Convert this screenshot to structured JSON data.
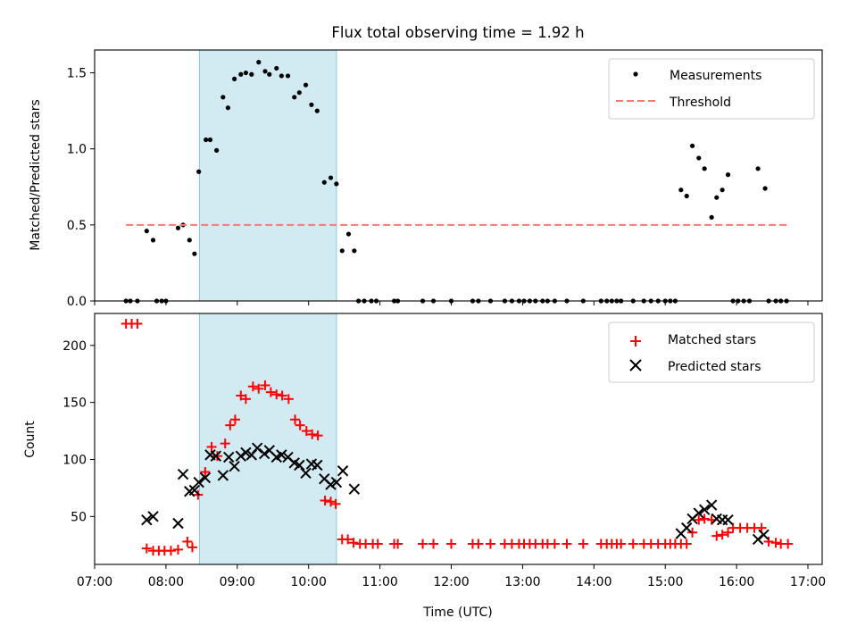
{
  "title": "Flux total observing time = 1.92 h",
  "chart_data": [
    {
      "type": "scatter",
      "panel": "top",
      "ylabel": "Matched/Predicted stars",
      "xlim": [
        7.0,
        17.2
      ],
      "ylim": [
        0.0,
        1.65
      ],
      "yticks": [
        0.0,
        0.5,
        1.0,
        1.5
      ],
      "ytick_labels": [
        "0.0",
        "0.5",
        "1.0",
        "1.5"
      ],
      "highlight": {
        "x_start": 8.47,
        "x_end": 10.39,
        "color": "#add8e6"
      },
      "legend": {
        "position": "top-right",
        "entries": [
          "Measurements",
          "Threshold"
        ]
      },
      "series": [
        {
          "name": "Measurements",
          "color": "#000000",
          "marker": "dot",
          "x": [
            7.44,
            7.5,
            7.6,
            7.73,
            7.82,
            7.87,
            7.94,
            8.0,
            8.17,
            8.24,
            8.33,
            8.4,
            8.46,
            8.56,
            8.62,
            8.71,
            8.8,
            8.87,
            8.96,
            9.05,
            9.12,
            9.2,
            9.3,
            9.39,
            9.45,
            9.55,
            9.62,
            9.71,
            9.8,
            9.87,
            9.96,
            10.04,
            10.12,
            10.22,
            10.31,
            10.39,
            10.47,
            10.56,
            10.64,
            10.7,
            10.78,
            10.88,
            10.95,
            11.2,
            11.25,
            11.6,
            11.75,
            12.0,
            12.3,
            12.38,
            12.55,
            12.75,
            12.85,
            12.95,
            13.02,
            13.1,
            13.18,
            13.28,
            13.35,
            13.45,
            13.62,
            13.85,
            14.1,
            14.18,
            14.25,
            14.32,
            14.38,
            14.55,
            14.7,
            14.8,
            14.9,
            15.0,
            15.07,
            15.14,
            15.22,
            15.3,
            15.38,
            15.47,
            15.55,
            15.65,
            15.72,
            15.8,
            15.88,
            15.95,
            16.02,
            16.1,
            16.18,
            16.3,
            16.4,
            16.45,
            16.55,
            16.62,
            16.7
          ],
          "y": [
            0,
            0,
            0,
            0.46,
            0.4,
            0,
            0,
            0,
            0.48,
            0.5,
            0.4,
            0.31,
            0.85,
            1.06,
            1.06,
            0.99,
            1.34,
            1.27,
            1.46,
            1.49,
            1.5,
            1.49,
            1.57,
            1.51,
            1.49,
            1.53,
            1.48,
            1.48,
            1.34,
            1.37,
            1.42,
            1.29,
            1.25,
            0.78,
            0.81,
            0.77,
            0.33,
            0.44,
            0.33,
            0,
            0,
            0,
            0,
            0,
            0,
            0,
            0,
            0,
            0,
            0,
            0,
            0,
            0,
            0,
            0,
            0,
            0,
            0,
            0,
            0,
            0,
            0,
            0,
            0,
            0,
            0,
            0,
            0,
            0,
            0,
            0,
            0,
            0,
            0,
            0.73,
            0.69,
            1.02,
            0.94,
            0.87,
            0.55,
            0.68,
            0.73,
            0.83,
            0,
            0,
            0,
            0,
            0.87,
            0.74,
            0,
            0,
            0,
            0
          ]
        },
        {
          "name": "Threshold",
          "color": "#ff7777",
          "style": "dashed",
          "x": [
            7.44,
            16.72
          ],
          "y": [
            0.5,
            0.5
          ]
        }
      ]
    },
    {
      "type": "scatter",
      "panel": "bottom",
      "xlabel": "Time (UTC)",
      "ylabel": "Count",
      "xlim": [
        7.0,
        17.2
      ],
      "ylim": [
        8,
        228
      ],
      "yticks": [
        50,
        100,
        150,
        200
      ],
      "ytick_labels": [
        "50",
        "100",
        "150",
        "200"
      ],
      "xticks": [
        7,
        8,
        9,
        10,
        11,
        12,
        13,
        14,
        15,
        16,
        17
      ],
      "xtick_labels": [
        "07:00",
        "08:00",
        "09:00",
        "10:00",
        "11:00",
        "12:00",
        "13:00",
        "14:00",
        "15:00",
        "16:00",
        "17:00"
      ],
      "highlight": {
        "x_start": 8.47,
        "x_end": 10.39,
        "color": "#add8e6"
      },
      "legend": {
        "position": "top-right",
        "entries": [
          "Matched stars",
          "Predicted stars"
        ]
      },
      "series": [
        {
          "name": "Matched stars",
          "color": "#ff0000",
          "marker": "plus",
          "x": [
            7.44,
            7.52,
            7.6,
            7.73,
            7.82,
            7.9,
            7.98,
            8.07,
            8.17,
            8.3,
            8.37,
            8.45,
            8.55,
            8.64,
            8.72,
            8.83,
            8.9,
            8.97,
            9.05,
            9.12,
            9.22,
            9.3,
            9.39,
            9.47,
            9.55,
            9.63,
            9.72,
            9.81,
            9.88,
            9.97,
            10.05,
            10.13,
            10.23,
            10.31,
            10.38,
            10.47,
            10.55,
            10.63,
            10.72,
            10.8,
            10.9,
            10.97,
            11.2,
            11.25,
            11.6,
            11.75,
            12.0,
            12.3,
            12.38,
            12.55,
            12.75,
            12.85,
            12.95,
            13.02,
            13.1,
            13.18,
            13.28,
            13.35,
            13.45,
            13.62,
            13.85,
            14.1,
            14.18,
            14.25,
            14.32,
            14.38,
            14.55,
            14.7,
            14.8,
            14.9,
            15.0,
            15.07,
            15.14,
            15.22,
            15.3,
            15.38,
            15.47,
            15.55,
            15.65,
            15.72,
            15.8,
            15.88,
            15.95,
            16.05,
            16.15,
            16.25,
            16.35,
            16.45,
            16.55,
            16.62,
            16.72
          ],
          "y": [
            219,
            219,
            219,
            22,
            20,
            20,
            20,
            20,
            21,
            28,
            23,
            69,
            89,
            111,
            103,
            114,
            130,
            135,
            156,
            153,
            164,
            162,
            165,
            159,
            157,
            156,
            153,
            135,
            130,
            125,
            122,
            121,
            64,
            63,
            61,
            30,
            30,
            27,
            26,
            26,
            26,
            26,
            26,
            26,
            26,
            26,
            26,
            26,
            26,
            26,
            26,
            26,
            26,
            26,
            26,
            26,
            26,
            26,
            26,
            26,
            26,
            26,
            26,
            26,
            26,
            26,
            26,
            26,
            26,
            26,
            26,
            26,
            26,
            26,
            26,
            36,
            47,
            48,
            47,
            33,
            34,
            36,
            40,
            40,
            40,
            40,
            40,
            28,
            27,
            26,
            26
          ]
        },
        {
          "name": "Predicted stars",
          "color": "#000000",
          "marker": "x",
          "x": [
            7.73,
            7.82,
            8.17,
            8.24,
            8.33,
            8.4,
            8.46,
            8.55,
            8.62,
            8.7,
            8.8,
            8.88,
            8.96,
            9.05,
            9.12,
            9.2,
            9.28,
            9.38,
            9.45,
            9.55,
            9.62,
            9.71,
            9.8,
            9.87,
            9.96,
            10.04,
            10.12,
            10.22,
            10.31,
            10.39,
            10.48,
            10.64,
            15.22,
            15.3,
            15.38,
            15.47,
            15.55,
            15.65,
            15.72,
            15.8,
            15.88,
            16.3,
            16.38
          ],
          "y": [
            47,
            50,
            44,
            87,
            72,
            73,
            80,
            84,
            104,
            103,
            86,
            102,
            94,
            103,
            106,
            104,
            110,
            105,
            108,
            102,
            104,
            102,
            97,
            95,
            88,
            96,
            95,
            83,
            78,
            80,
            90,
            74,
            35,
            40,
            48,
            53,
            56,
            60,
            48,
            47,
            47,
            30,
            34
          ]
        }
      ]
    }
  ]
}
